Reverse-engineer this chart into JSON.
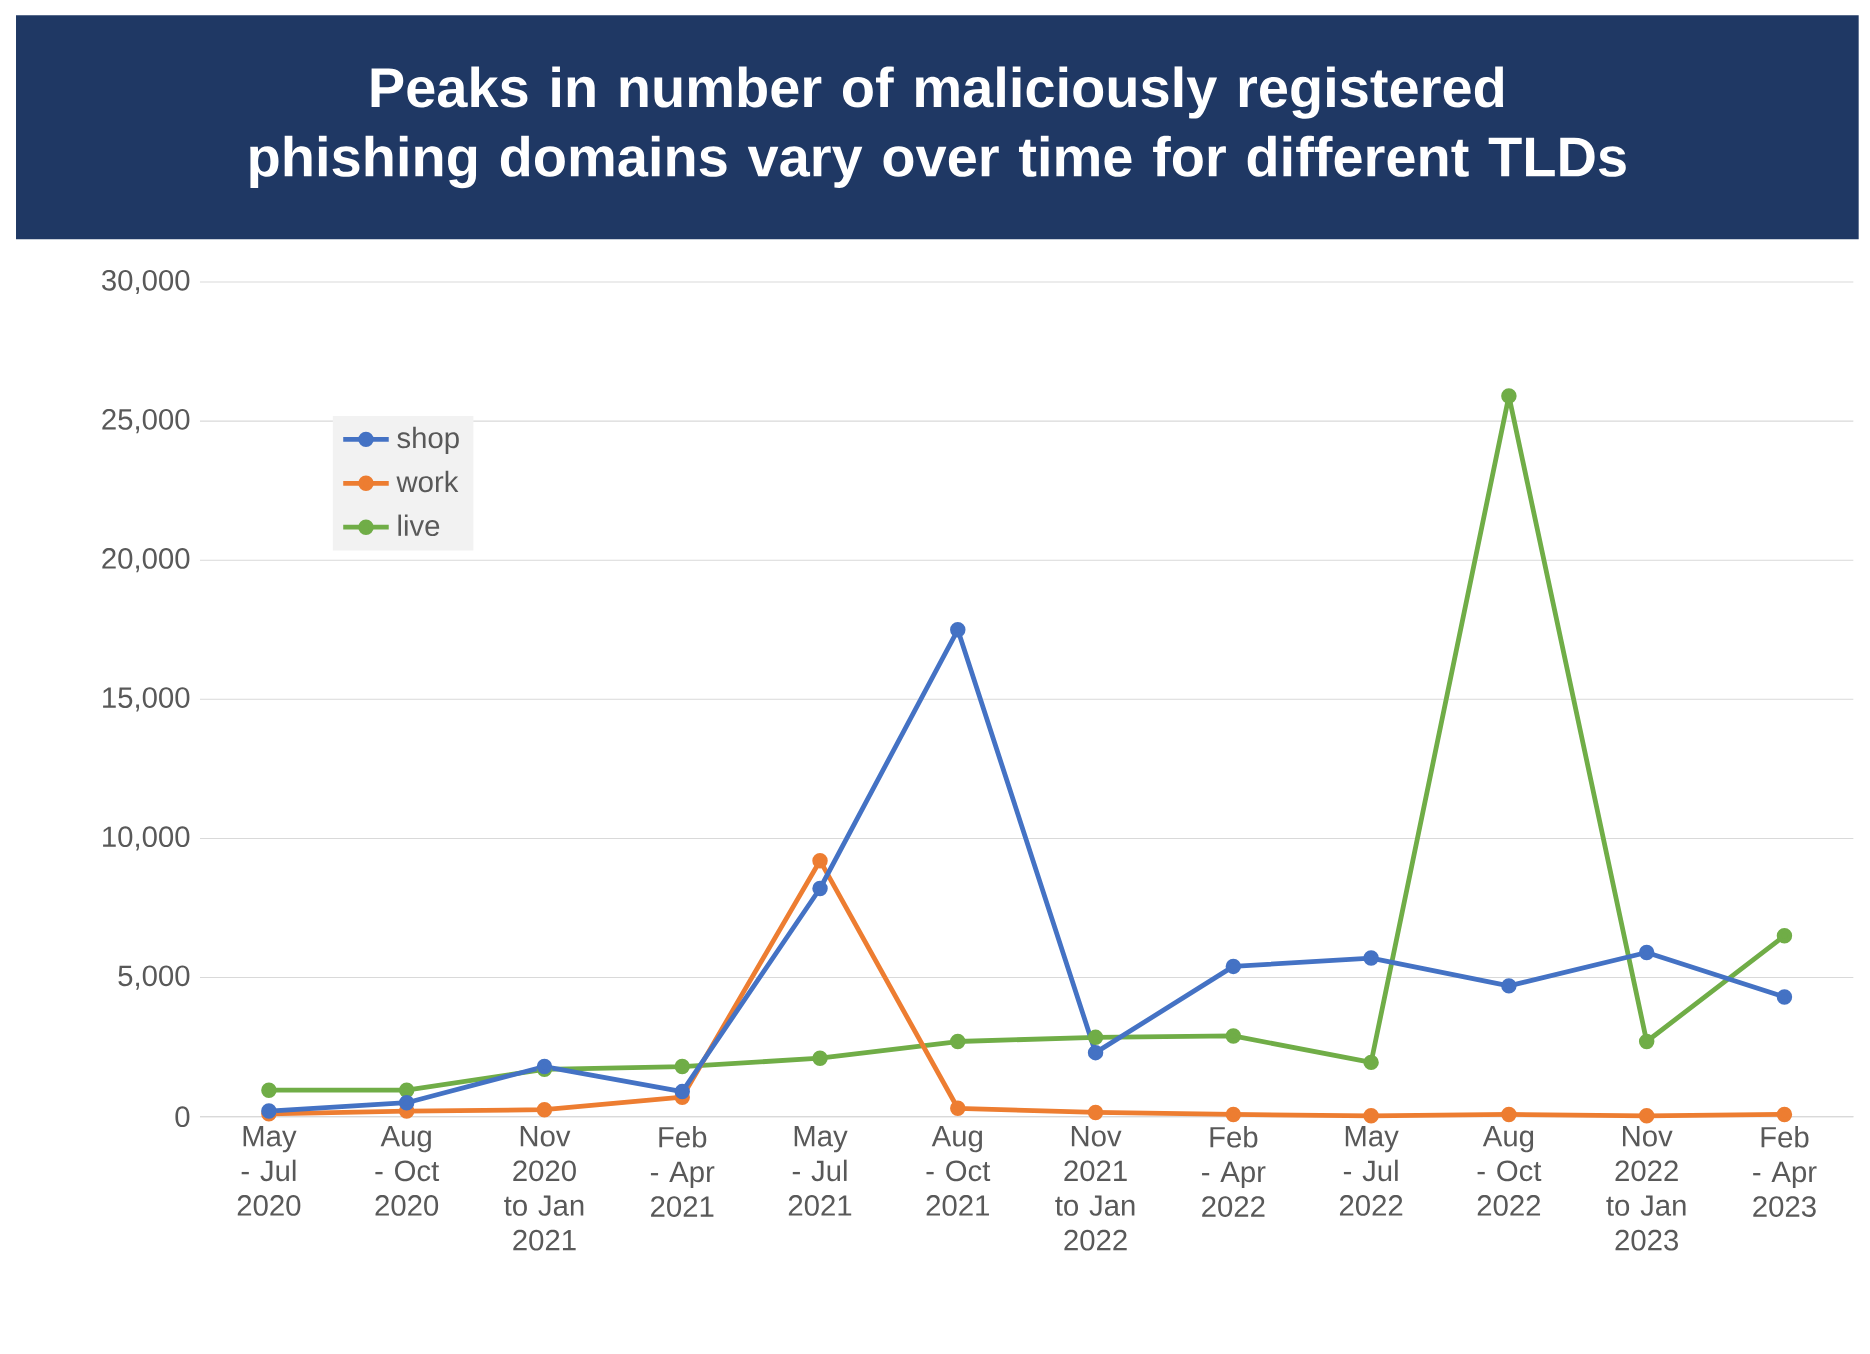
{
  "chart_data": {
    "type": "line",
    "title": "Peaks in number of maliciously registered phishing domains vary over time for different TLDs",
    "categories": [
      "May - Jul 2020",
      "Aug - Oct 2020",
      "Nov 2020 to Jan 2021",
      "Feb - Apr 2021",
      "May - Jul 2021",
      "Aug - Oct 2021",
      "Nov 2021 to Jan 2022",
      "Feb - Apr 2022",
      "May - Jul 2022",
      "Aug - Oct 2022",
      "Nov 2022 to Jan 2023",
      "Feb - Apr 2023"
    ],
    "series": [
      {
        "name": "shop",
        "color": "#4472c4",
        "values": [
          200,
          500,
          1800,
          900,
          8200,
          17500,
          2300,
          5400,
          5700,
          4700,
          5900,
          4300
        ]
      },
      {
        "name": "work",
        "color": "#ed7d31",
        "values": [
          100,
          200,
          250,
          700,
          9200,
          300,
          150,
          80,
          30,
          80,
          30,
          80
        ]
      },
      {
        "name": "live",
        "color": "#70ad47",
        "values": [
          950,
          950,
          1700,
          1800,
          2100,
          2700,
          2850,
          2900,
          1950,
          25900,
          2700,
          6500
        ]
      }
    ],
    "ylim": [
      0,
      30000
    ],
    "yticks": [
      0,
      {
        "value": 5000,
        "label": "5,000"
      },
      {
        "value": 10000,
        "label": "10,000"
      },
      {
        "value": 15000,
        "label": "15,000"
      },
      {
        "value": 20000,
        "label": "20,000"
      },
      {
        "value": 25000,
        "label": "25,000"
      },
      {
        "value": 30000,
        "label": "30,000"
      }
    ],
    "grid": "y",
    "legend": "top left",
    "marker": "circle",
    "line_style": "solid"
  }
}
